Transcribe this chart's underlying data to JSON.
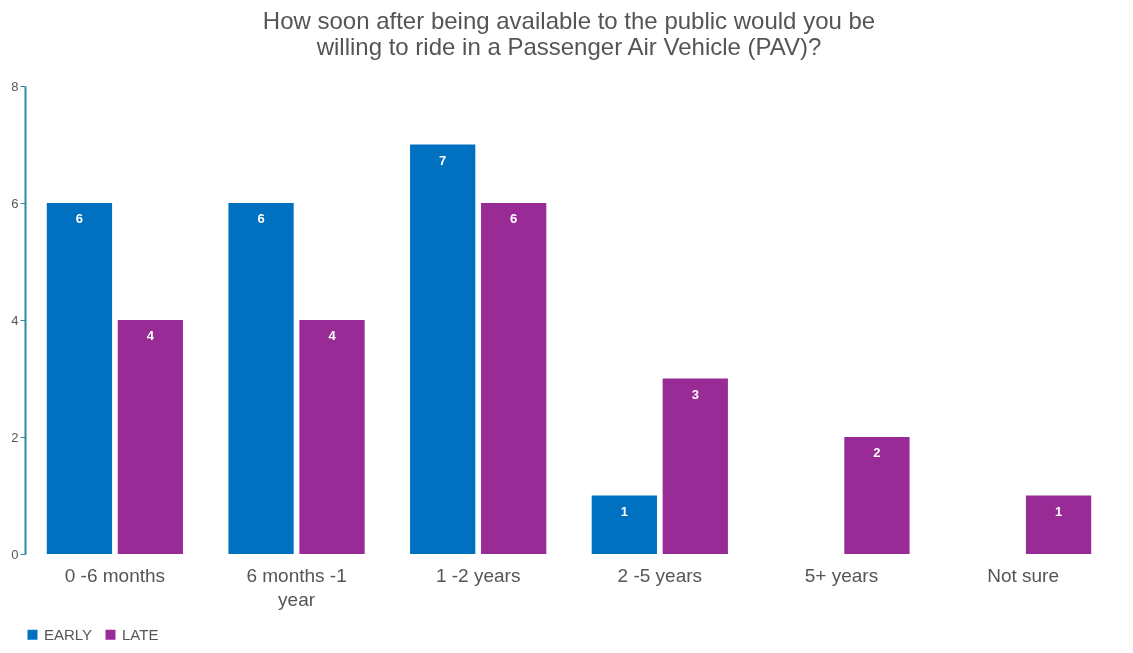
{
  "chart_data": {
    "type": "bar",
    "title": "How soon after being available to the public would you be willing to ride in a Passenger Air Vehicle (PAV)?",
    "categories": [
      "0 -6 months",
      "6 months -1 year",
      "1 -2 years",
      "2 -5 years",
      "5+ years",
      "Not sure"
    ],
    "series": [
      {
        "name": "EARLY",
        "color": "#0070c0",
        "values": [
          6,
          6,
          7,
          1,
          null,
          null
        ]
      },
      {
        "name": "LATE",
        "color": "#982b96",
        "values": [
          4,
          4,
          6,
          3,
          2,
          1
        ]
      }
    ],
    "ylim": [
      0,
      8
    ],
    "yticks": [
      0,
      2,
      4,
      6,
      8
    ],
    "grid": false,
    "legend": "bottom",
    "data_labels": true
  }
}
